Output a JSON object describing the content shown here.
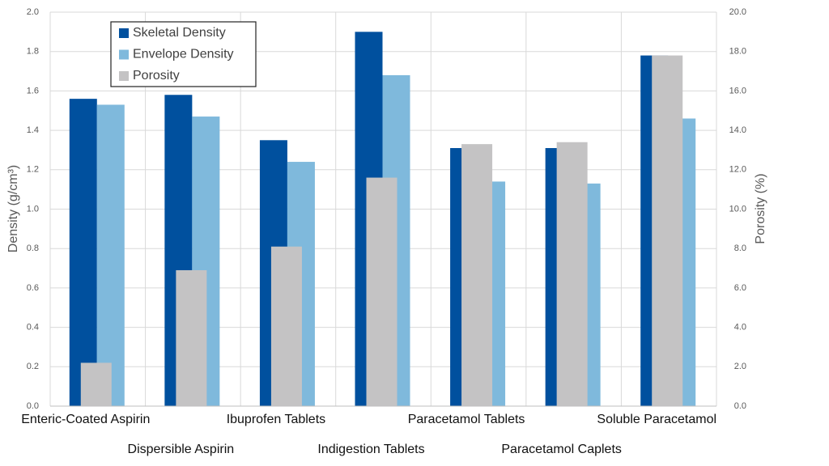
{
  "chart_data": {
    "type": "bar",
    "categories": [
      "Enteric-Coated Aspirin",
      "Dispersible Aspirin",
      "Ibuprofen Tablets",
      "Indigestion Tablets",
      "Paracetamol Tablets",
      "Paracetamol Caplets",
      "Soluble Paracetamol"
    ],
    "series": [
      {
        "name": "Skeletal Density",
        "color": "#00509e",
        "values": [
          1.56,
          1.58,
          1.35,
          1.9,
          1.31,
          1.31,
          1.78
        ]
      },
      {
        "name": "Envelope Density",
        "color": "#7fb9dc",
        "values": [
          1.53,
          1.47,
          1.24,
          1.68,
          1.14,
          1.13,
          1.46
        ]
      },
      {
        "name": "Porosity",
        "color": "#c4c3c4",
        "values": [
          2.2,
          6.9,
          8.1,
          11.6,
          13.3,
          13.4,
          17.8
        ],
        "axis": "y2"
      }
    ],
    "y_label": "Density (g/cm³)",
    "y2_label": "Porosity (%)",
    "ylim": [
      0,
      2
    ],
    "yticks": [
      {
        "value": 0,
        "label": "0.0"
      },
      0.2,
      0.4,
      0.6,
      0.8,
      {
        "value": 1,
        "label": "1.0"
      },
      1.2,
      1.4,
      1.6,
      1.8,
      {
        "value": 2,
        "label": "2.0"
      }
    ],
    "y2lim": [
      0,
      20
    ],
    "y2ticks": [
      {
        "value": 0,
        "label": "0.0"
      },
      {
        "value": 2,
        "label": "2.0"
      },
      {
        "value": 4,
        "label": "4.0"
      },
      {
        "value": 6,
        "label": "6.0"
      },
      {
        "value": 8,
        "label": "8.0"
      },
      {
        "value": 10,
        "label": "10.0"
      },
      {
        "value": 12,
        "label": "12.0"
      },
      {
        "value": 14,
        "label": "14.0"
      },
      {
        "value": 16,
        "label": "16.0"
      },
      {
        "value": 18,
        "label": "18.0"
      },
      {
        "value": 20,
        "label": "20.0"
      }
    ],
    "grid": true,
    "legend": "upper left"
  }
}
